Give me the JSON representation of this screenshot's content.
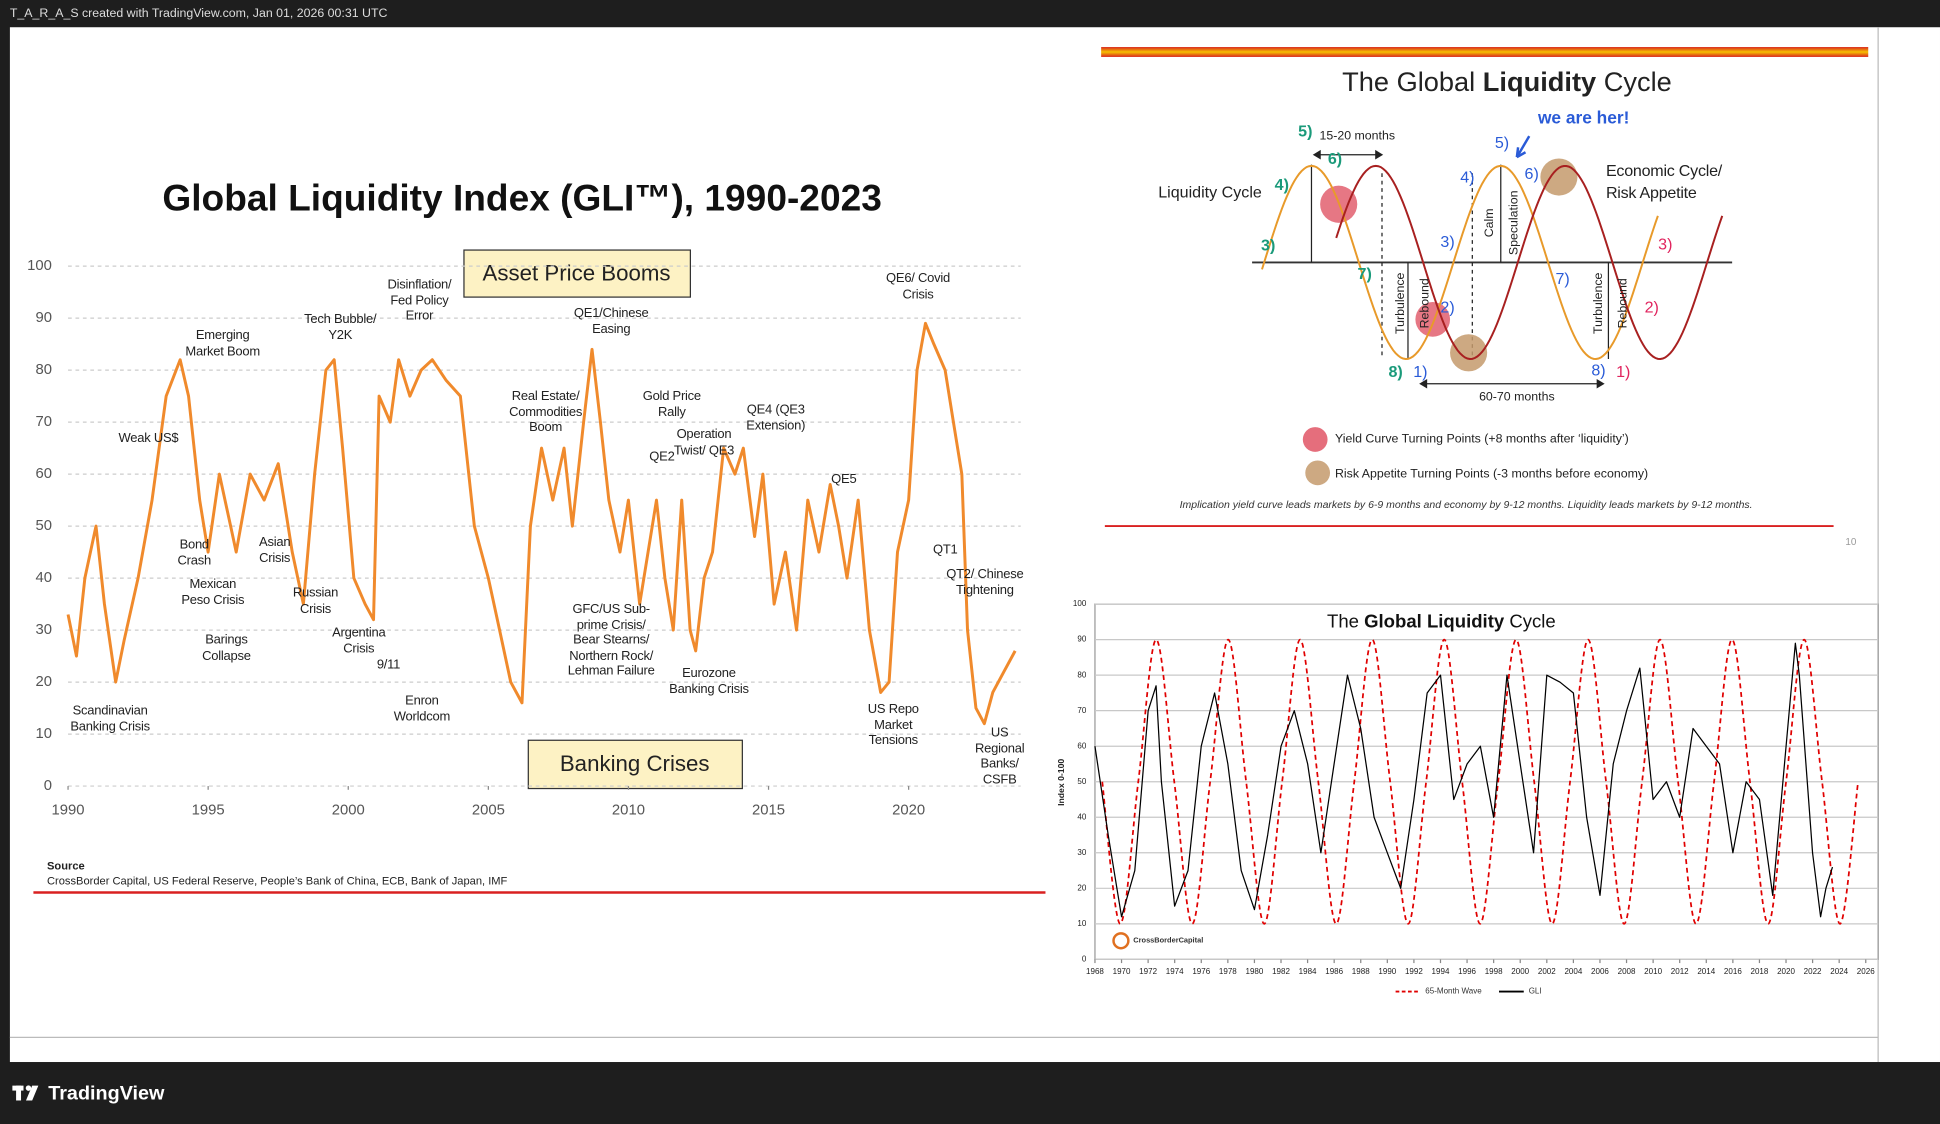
{
  "header": "T_A_R_A_S created with TradingView.com, Jan 01, 2026 00:31 UTC",
  "footer": "TradingView",
  "diagram": {
    "title_parts": [
      "The Global",
      "Liquidity",
      "Cycle"
    ],
    "labels": [
      "Liquidity Cycle",
      "Economic Cycle/\nRisk Appetite",
      "15-20 months",
      "60-70 months",
      "we are her!",
      "5)",
      "6)",
      "4)",
      "3)",
      "7)",
      "8)",
      "1)",
      "2)",
      "4)",
      "5)",
      "6)",
      "3)",
      "7)",
      "8)",
      "1)",
      "2)",
      "3)"
    ],
    "vertical_labels": [
      "Turbulence",
      "Rebound",
      "Calm",
      "Speculation",
      "Turbulence",
      "Rebound"
    ],
    "legend": [
      "Yield Curve Turning Points (+8 months after ‘liquidity’)",
      "Risk Appetite Turning Points (-3 months before economy)"
    ],
    "note": "Implication yield curve leads markets by 6-9 months and economy by 9-12 months. Liquidity leads markets by 9-12 months.",
    "page_number": "10"
  },
  "chart_data": [
    {
      "type": "line",
      "title": "Global Liquidity Index (GLI™), 1990-2023",
      "color": "#f08a2c",
      "x": [
        1990,
        1990.3,
        1990.6,
        1991,
        1991.3,
        1991.7,
        1992,
        1992.5,
        1993,
        1993.5,
        1994,
        1994.3,
        1994.7,
        1995,
        1995.4,
        1995.8,
        1996,
        1996.5,
        1997,
        1997.5,
        1998,
        1998.4,
        1998.8,
        1999.2,
        1999.5,
        1999.8,
        2000.2,
        2000.6,
        2000.9,
        2001.1,
        2001.5,
        2001.8,
        2002.2,
        2002.6,
        2003,
        2003.5,
        2004,
        2004.5,
        2005,
        2005.4,
        2005.8,
        2006.2,
        2006.5,
        2006.9,
        2007.3,
        2007.7,
        2008,
        2008.4,
        2008.7,
        2009,
        2009.3,
        2009.7,
        2010,
        2010.4,
        2010.7,
        2011,
        2011.3,
        2011.6,
        2011.9,
        2012.2,
        2012.4,
        2012.7,
        2013,
        2013.4,
        2013.8,
        2014.1,
        2014.5,
        2014.8,
        2015.2,
        2015.6,
        2016,
        2016.4,
        2016.8,
        2017.2,
        2017.5,
        2017.8,
        2018.2,
        2018.6,
        2019,
        2019.3,
        2019.6,
        2020,
        2020.3,
        2020.6,
        2020.9,
        2021.3,
        2021.6,
        2021.9,
        2022.1,
        2022.4,
        2022.7,
        2023,
        2023.4,
        2023.8
      ],
      "values": [
        33,
        25,
        40,
        50,
        35,
        20,
        28,
        40,
        55,
        75,
        82,
        75,
        55,
        45,
        60,
        50,
        45,
        60,
        55,
        62,
        45,
        35,
        60,
        80,
        82,
        65,
        40,
        35,
        32,
        75,
        70,
        82,
        75,
        80,
        82,
        78,
        75,
        50,
        40,
        30,
        20,
        16,
        50,
        65,
        55,
        65,
        50,
        70,
        84,
        70,
        55,
        45,
        55,
        35,
        45,
        55,
        40,
        30,
        55,
        30,
        26,
        40,
        45,
        65,
        60,
        65,
        48,
        60,
        35,
        45,
        30,
        55,
        45,
        58,
        50,
        40,
        55,
        30,
        18,
        20,
        45,
        55,
        80,
        89,
        85,
        80,
        70,
        60,
        30,
        15,
        12,
        18,
        22,
        26
      ],
      "xlim": [
        1990,
        2024
      ],
      "xticks": [
        1990,
        1995,
        2000,
        2005,
        2010,
        2015,
        2020
      ],
      "ylim": [
        0,
        100
      ],
      "yticks": [
        0,
        10,
        20,
        30,
        40,
        50,
        60,
        70,
        80,
        90,
        100
      ],
      "grid": true,
      "annotations": [
        "Scandinavian\nBanking Crisis",
        "Weak US$",
        "Emerging\nMarket Boom",
        "Bond\nCrash",
        "Mexican\nPeso Crisis",
        "Barings\nCollapse",
        "Asian\nCrisis",
        "Tech Bubble/\nY2K",
        "Russian\nCrisis",
        "Argentina\nCrisis",
        "9/11",
        "Disinflation/\nFed Policy\nError",
        "Enron\nWorldcom",
        "Real Estate/\nCommodities\nBoom",
        "QE1/Chinese\nEasing",
        "GFC/US Sub-\nprime Crisis/\nBear Stearns/\nNorthern Rock/\nLehman Failure",
        "Gold Price\nRally",
        "QE2",
        "Operation\nTwist/ QE3",
        "QE4 (QE3\nExtension)",
        "Eurozone\nBanking Crisis",
        "QE5",
        "QE6/ Covid\nCrisis",
        "US Repo\nMarket\nTensions",
        "QT1",
        "QT2/ Chinese\nTightening",
        "US\nRegional\nBanks/\nCSFB"
      ],
      "callouts": [
        "Asset Price Booms",
        "Banking Crises"
      ],
      "source_label": "Source",
      "source": "CrossBorder Capital, US Federal Reserve, People’s Bank of China, ECB, Bank of Japan, IMF"
    },
    {
      "type": "line",
      "title_parts": [
        "The",
        "Global Liquidity",
        "Cycle"
      ],
      "ylabel": "Index 0-100",
      "logo_text": "CrossBorderCapital",
      "series": [
        {
          "name": "65-Month Wave",
          "color": "#e00000",
          "line_style": "dashed",
          "smooth": true,
          "x": [
            1968.55,
            1969.9,
            1971.26,
            1972.61,
            1973.97,
            1975.32,
            1976.67,
            1978.03,
            1979.38,
            1980.74,
            1982.09,
            1983.44,
            1984.8,
            1986.15,
            1987.51,
            1988.86,
            1990.21,
            1991.57,
            1992.92,
            1994.28,
            1995.63,
            1996.98,
            1998.34,
            1999.69,
            2001.05,
            2002.4,
            2003.75,
            2005.11,
            2006.46,
            2007.82,
            2009.17,
            2010.52,
            2011.88,
            2013.23,
            2014.59,
            2015.94,
            2017.29,
            2018.65,
            2020.0,
            2021.36,
            2022.71,
            2024.06,
            2025.42
          ],
          "values": [
            50,
            10,
            50,
            90,
            50,
            10,
            50,
            90,
            50,
            10,
            50,
            90,
            50,
            10,
            50,
            90,
            50,
            10,
            50,
            90,
            50,
            10,
            50,
            90,
            50,
            10,
            50,
            90,
            50,
            10,
            50,
            90,
            50,
            10,
            50,
            90,
            50,
            10,
            50,
            90,
            50,
            10,
            50
          ]
        },
        {
          "name": "GLI",
          "color": "#000000",
          "line_style": "solid",
          "smooth": false,
          "x": [
            1968,
            1969,
            1970,
            1971,
            1972,
            1972.6,
            1973,
            1974,
            1975,
            1976,
            1977,
            1978,
            1979,
            1980,
            1981,
            1982,
            1983,
            1984,
            1985,
            1986,
            1987,
            1988,
            1989,
            1990,
            1991,
            1992,
            1993,
            1994,
            1995,
            1996,
            1997,
            1998,
            1999,
            2000,
            2001,
            2002,
            2003,
            2004,
            2005,
            2006,
            2007,
            2008,
            2009,
            2010,
            2011,
            2012,
            2013,
            2014,
            2015,
            2016,
            2017,
            2018,
            2019,
            2020,
            2020.7,
            2021,
            2022,
            2022.6,
            2023,
            2023.5
          ],
          "values": [
            60,
            35,
            12,
            25,
            70,
            77,
            50,
            15,
            25,
            60,
            75,
            55,
            25,
            14,
            35,
            60,
            70,
            55,
            30,
            55,
            80,
            65,
            40,
            30,
            20,
            45,
            75,
            80,
            45,
            55,
            60,
            40,
            80,
            55,
            30,
            80,
            78,
            75,
            40,
            18,
            55,
            70,
            82,
            45,
            50,
            40,
            65,
            60,
            55,
            30,
            50,
            45,
            18,
            60,
            89,
            80,
            30,
            12,
            20,
            26
          ]
        }
      ],
      "xlim": [
        1968,
        2026
      ],
      "xticks": [
        1968,
        1970,
        1972,
        1974,
        1976,
        1978,
        1980,
        1982,
        1984,
        1986,
        1988,
        1990,
        1992,
        1994,
        1996,
        1998,
        2000,
        2002,
        2004,
        2006,
        2008,
        2010,
        2012,
        2014,
        2016,
        2018,
        2020,
        2022,
        2024,
        2026
      ],
      "ylim": [
        0,
        100
      ],
      "yticks": [
        0,
        10,
        20,
        30,
        40,
        50,
        60,
        70,
        80,
        90,
        100
      ],
      "grid": true
    }
  ]
}
